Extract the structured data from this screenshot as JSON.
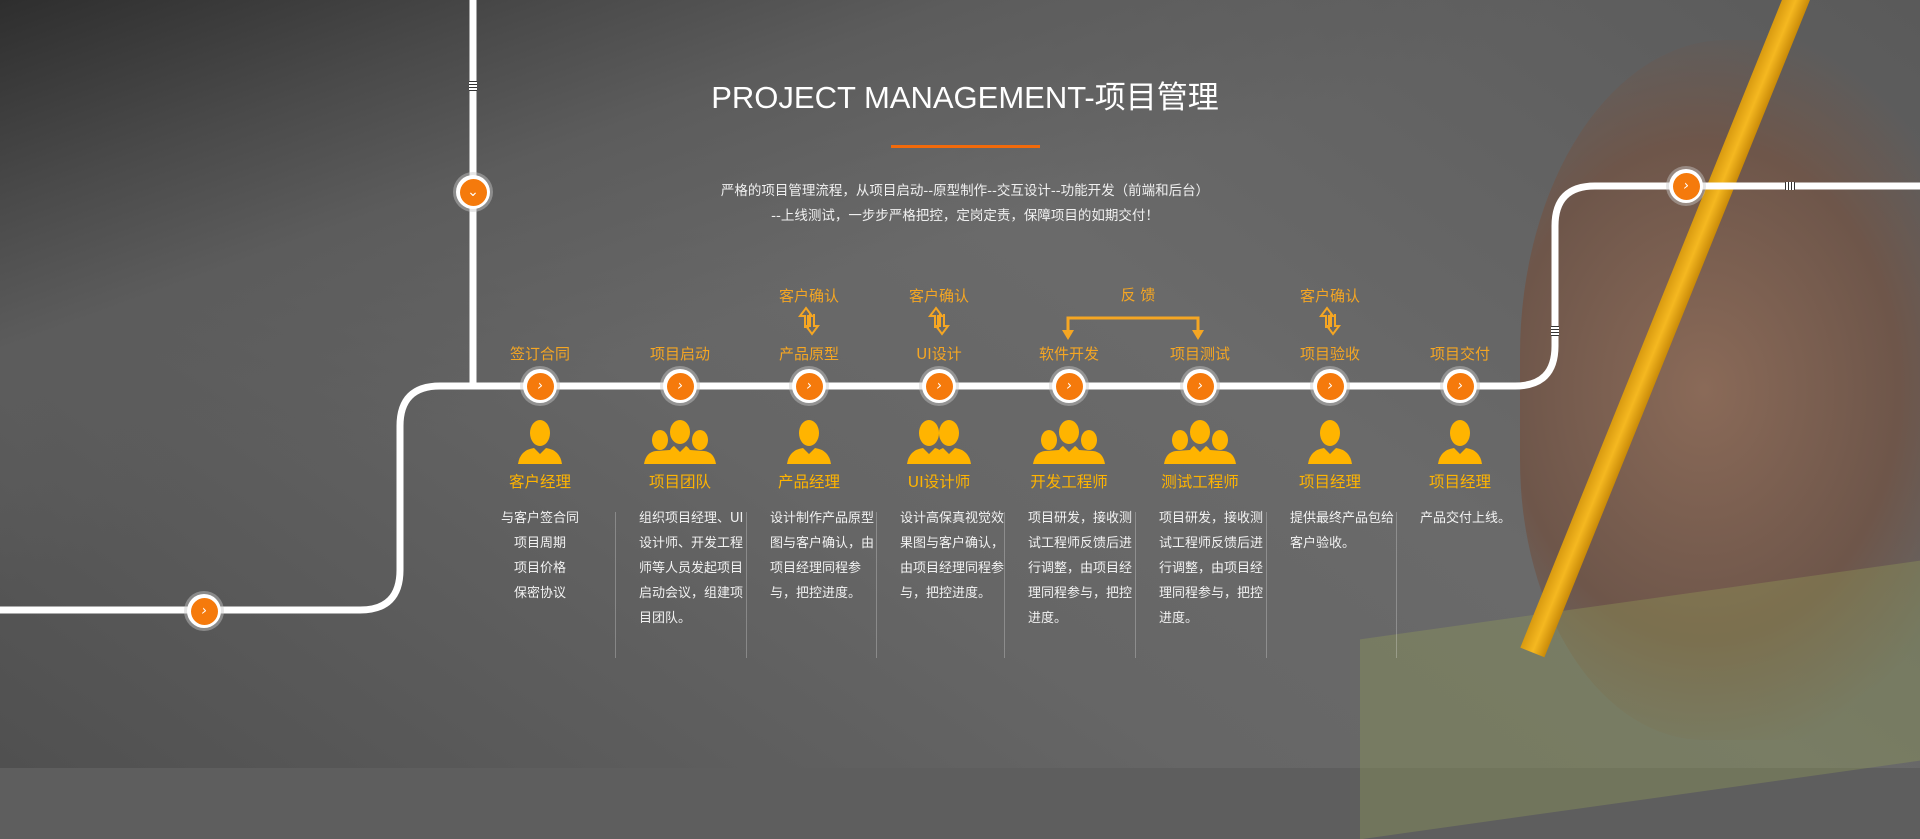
{
  "header": {
    "title": "PROJECT MANAGEMENT-项目管理",
    "subtitle_lines": [
      "严格的项目管理流程，从项目启动--原型制作--交互设计--功能开发（前端和后台）",
      "--上线测试，一步步严格把控，定岗定责，保障项目的如期交付！"
    ]
  },
  "colors": {
    "accent": "#f57a0c",
    "label": "#f5a623",
    "role": "#ffb400",
    "track": "#ffffff"
  },
  "confirm_label": "客户确认",
  "feedback_label": "反 馈",
  "steps": [
    {
      "label": "签订合同",
      "role": "客户经理",
      "icon": "single-person-icon",
      "desc": "与客户签合同\n项目周期\n项目价格\n保密协议"
    },
    {
      "label": "项目启动",
      "role": "项目团队",
      "icon": "team-icon",
      "desc": "组织项目经理、UI设计师、开发工程师等人员发起项目启动会议，组建项目团队。"
    },
    {
      "label": "产品原型",
      "role": "产品经理",
      "icon": "single-person-icon",
      "confirm": true,
      "desc": "设计制作产品原型图与客户确认，由项目经理同程参与，把控进度。"
    },
    {
      "label": "UI设计",
      "role": "UI设计师",
      "icon": "pair-icon",
      "confirm": true,
      "desc": "设计高保真视觉效果图与客户确认，由项目经理同程参与，把控进度。"
    },
    {
      "label": "软件开发",
      "role": "开发工程师",
      "icon": "team-icon",
      "desc": "项目研发，接收测试工程师反馈后进行调整，由项目经理同程参与，把控进度。"
    },
    {
      "label": "项目测试",
      "role": "测试工程师",
      "icon": "team-icon",
      "desc": "项目研发，接收测试工程师反馈后进行调整，由项目经理同程参与，把控进度。"
    },
    {
      "label": "项目验收",
      "role": "项目经理",
      "icon": "single-person-icon",
      "confirm": true,
      "desc": "提供最终产品包给客户验收。"
    },
    {
      "label": "项目交付",
      "role": "项目经理",
      "icon": "single-person-icon",
      "desc": "产品交付上线。"
    }
  ]
}
